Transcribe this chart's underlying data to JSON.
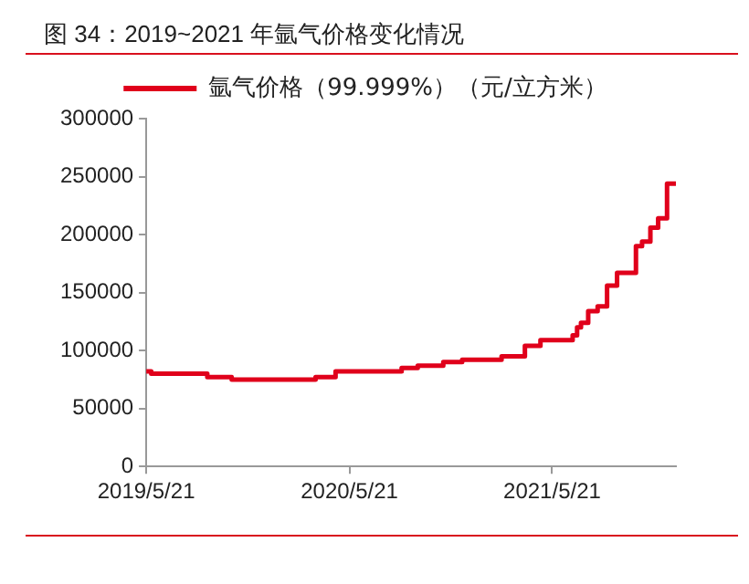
{
  "chart_data": {
    "type": "step",
    "title": "图 34：2019~2021 年氩气价格变化情况",
    "x": [
      "2019-05-21",
      "2019-05-30",
      "2019-09-08",
      "2019-10-22",
      "2020-03-21",
      "2020-04-26",
      "2020-08-23",
      "2020-09-21",
      "2020-11-06",
      "2020-12-10",
      "2021-02-19",
      "2021-04-02",
      "2021-04-30",
      "2021-06-27",
      "2021-07-05",
      "2021-07-12",
      "2021-07-25",
      "2021-08-11",
      "2021-08-28",
      "2021-09-15",
      "2021-10-19",
      "2021-10-30",
      "2021-11-14",
      "2021-11-28",
      "2021-12-14",
      "2021-12-30"
    ],
    "series": [
      {
        "name": "氩气价格（99.999%）（元/立方米）",
        "color": "#e0001b",
        "values": [
          82000,
          80000,
          77000,
          75000,
          77000,
          82000,
          85000,
          87000,
          90000,
          92000,
          95000,
          104000,
          109000,
          113000,
          120000,
          124000,
          134000,
          138000,
          156000,
          167000,
          190000,
          194000,
          206000,
          214000,
          244000,
          244000
        ]
      }
    ],
    "xlim": [
      "2019-05-21",
      "2021-12-30"
    ],
    "xticks": [
      {
        "value": "2019-05-21",
        "label": "2019/5/21"
      },
      {
        "value": "2020-05-21",
        "label": "2020/5/21"
      },
      {
        "value": "2021-05-21",
        "label": "2021/5/21"
      }
    ],
    "ylim": [
      0,
      300000
    ],
    "yticks": [
      0,
      50000,
      100000,
      150000,
      200000,
      250000,
      300000
    ],
    "grid": false,
    "legend": "top",
    "marker": "none",
    "line_style": "solid"
  }
}
